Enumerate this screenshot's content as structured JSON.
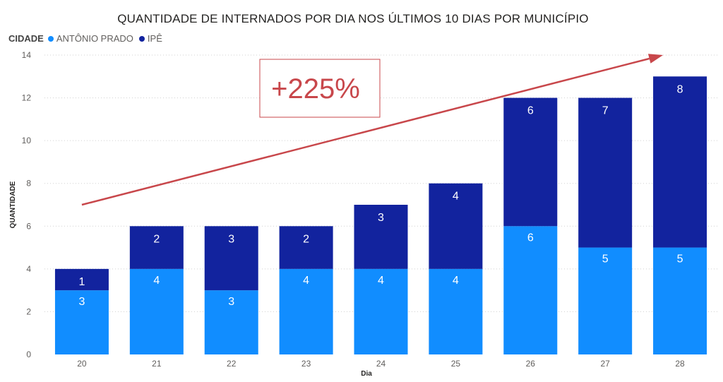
{
  "chart_data": {
    "type": "bar",
    "stacked": true,
    "title": "QUANTIDADE DE INTERNADOS POR DIA NOS ÚLTIMOS 10 DIAS POR MUNICÍPIO",
    "legend_title": "CIDADE",
    "legend_position": "top-left",
    "xlabel": "Dia",
    "ylabel": "QUANTIDADE",
    "ylim": [
      0,
      14
    ],
    "yticks": [
      0,
      2,
      4,
      6,
      8,
      10,
      12,
      14
    ],
    "grid": true,
    "categories": [
      "20",
      "21",
      "22",
      "23",
      "24",
      "25",
      "26",
      "27",
      "28"
    ],
    "series": [
      {
        "name": "ANTÔNIO PRADO",
        "color": "#118dff",
        "values": [
          3,
          4,
          3,
          4,
          4,
          4,
          6,
          5,
          5
        ]
      },
      {
        "name": "IPÊ",
        "color": "#12239e",
        "values": [
          1,
          2,
          3,
          2,
          3,
          4,
          6,
          7,
          8
        ]
      }
    ],
    "annotation": {
      "text": "+225%",
      "color": "#c8474b",
      "arrow_from": [
        "20",
        7
      ],
      "arrow_to": [
        "28",
        14
      ]
    }
  }
}
